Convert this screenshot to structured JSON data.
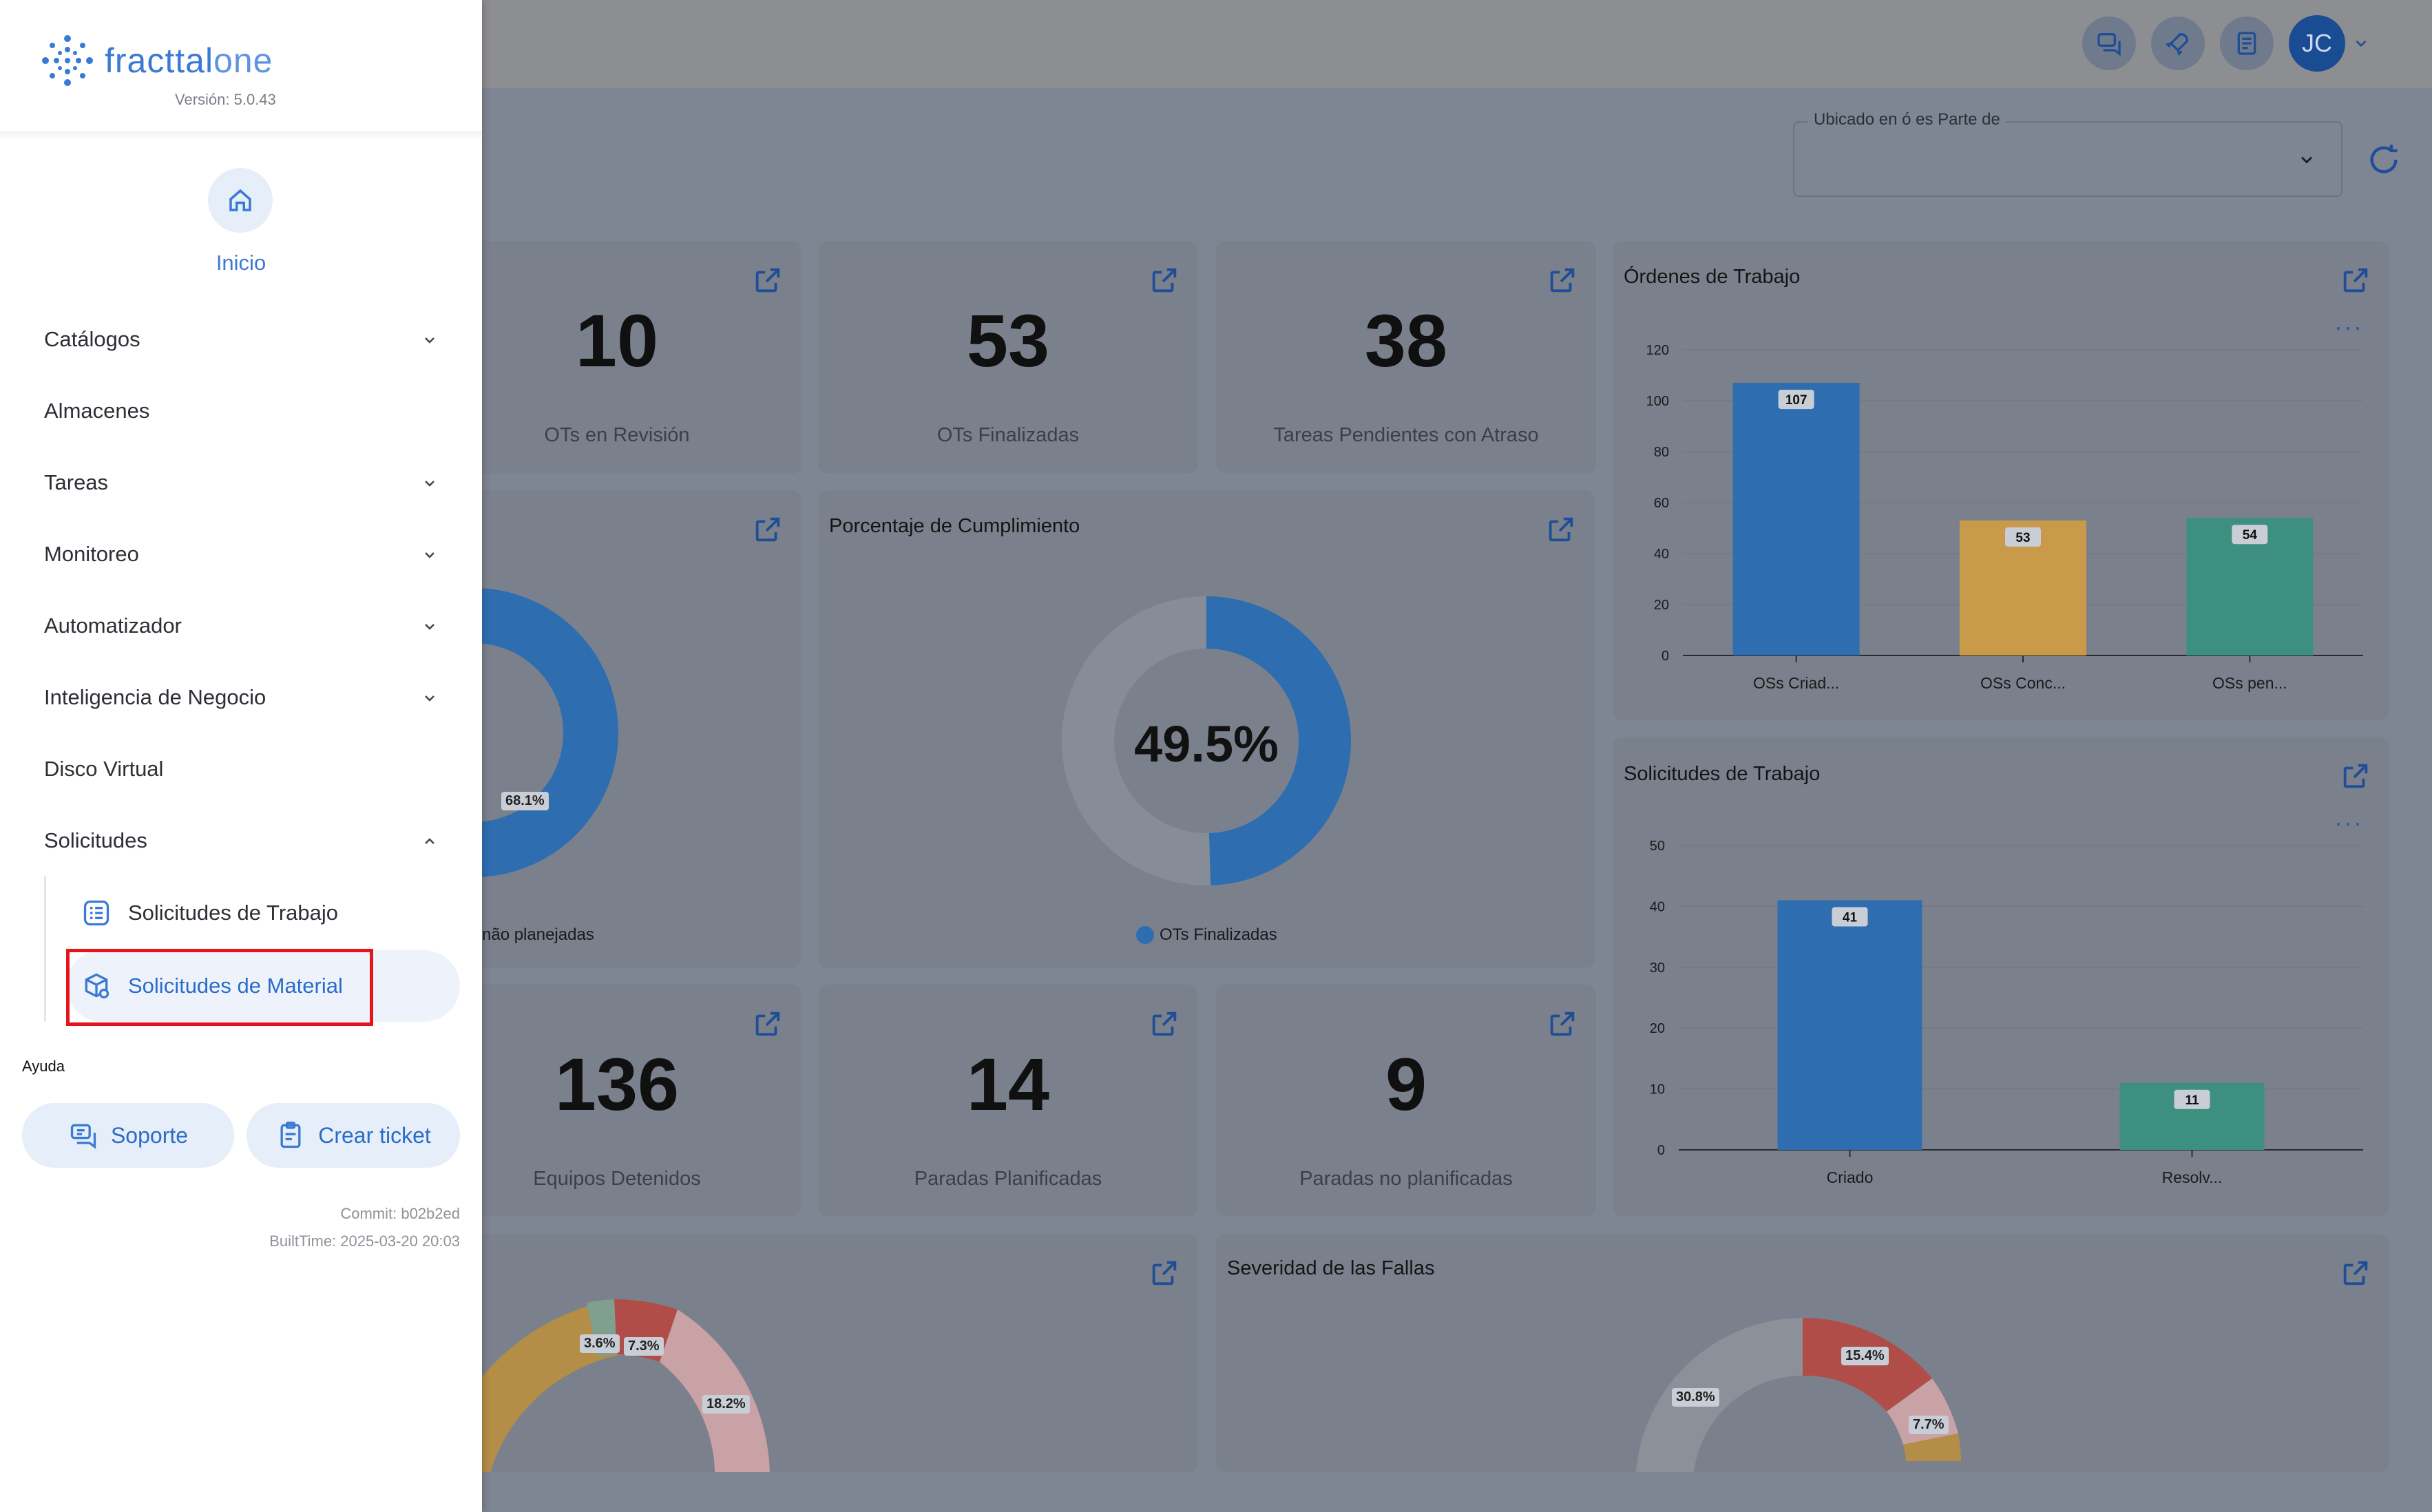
{
  "app": {
    "brand": "fracttal",
    "brand_suffix": "one",
    "version": "Versión: 5.0.43",
    "colors": {
      "accent": "#3a79d4",
      "highlight": "#e5161b"
    }
  },
  "topbar": {
    "icons": [
      "chat-support-icon",
      "rocket-icon",
      "document-icon"
    ],
    "avatar_initials": "JC"
  },
  "drawer": {
    "home_label": "Inicio",
    "menu": [
      {
        "label": "Catálogos",
        "expandable": true,
        "expanded": false
      },
      {
        "label": "Almacenes",
        "expandable": false
      },
      {
        "label": "Tareas",
        "expandable": true,
        "expanded": false
      },
      {
        "label": "Monitoreo",
        "expandable": true,
        "expanded": false
      },
      {
        "label": "Automatizador",
        "expandable": true,
        "expanded": false
      },
      {
        "label": "Inteligencia de Negocio",
        "expandable": true,
        "expanded": false
      },
      {
        "label": "Disco Virtual",
        "expandable": false
      },
      {
        "label": "Solicitudes",
        "expandable": true,
        "expanded": true
      }
    ],
    "submenu": [
      {
        "label": "Solicitudes de Trabajo",
        "icon": "list-icon",
        "active": false
      },
      {
        "label": "Solicitudes de Material",
        "icon": "package-icon",
        "active": true
      }
    ],
    "help": {
      "title": "Ayuda",
      "support_label": "Soporte",
      "ticket_label": "Crear ticket"
    },
    "commit": "Commit: b02b2ed",
    "built_time": "BuiltTime: 2025-03-20 20:03"
  },
  "filter": {
    "label": "Ubicado en ó es Parte de",
    "value": ""
  },
  "kpis": {
    "ots_revision": {
      "value": "10",
      "label": "OTs en Revisión"
    },
    "ots_finalizadas": {
      "value": "53",
      "label": "OTs Finalizadas"
    },
    "tareas_atraso": {
      "value": "38",
      "label": "Tareas Pendientes con Atraso"
    },
    "equipos_detenidos": {
      "value": "136",
      "label": "Equipos Detenidos"
    },
    "paradas_planificadas": {
      "value": "14",
      "label": "Paradas Planificadas"
    },
    "paradas_no_planificadas": {
      "value": "9",
      "label": "Paradas no planificadas"
    }
  },
  "cards": {
    "partial_donut_legend": "não planejadas",
    "partial_donut_label": "68.1%",
    "cumplimiento_title": "Porcentaje de Cumplimiento",
    "cumplimiento_center": "49.5%",
    "cumplimiento_legend": "OTs Finalizadas",
    "bottom_left_labels": [
      "3.6%",
      "7.3%",
      "18.2%"
    ],
    "severidad_title": "Severidad de las Fallas",
    "severidad_labels": [
      "15.4%",
      "7.7%",
      "30.8%"
    ]
  },
  "chart_data": [
    {
      "type": "bar",
      "title": "Órdenes de Trabajo",
      "categories": [
        "OSs Criad...",
        "OSs Conc...",
        "OSs pen..."
      ],
      "values": [
        107,
        53,
        54
      ],
      "yticks": [
        0,
        20,
        40,
        60,
        80,
        100,
        120
      ],
      "ylim": [
        0,
        120
      ],
      "colors": [
        "#2e6db0",
        "#c99a4a",
        "#3d8f80"
      ]
    },
    {
      "type": "bar",
      "title": "Solicitudes de Trabajo",
      "categories": [
        "Criado",
        "Resolv..."
      ],
      "values": [
        41,
        11
      ],
      "yticks": [
        0,
        10,
        20,
        30,
        40,
        50
      ],
      "ylim": [
        0,
        50
      ],
      "colors": [
        "#2e6db0",
        "#3d8f80"
      ]
    }
  ]
}
